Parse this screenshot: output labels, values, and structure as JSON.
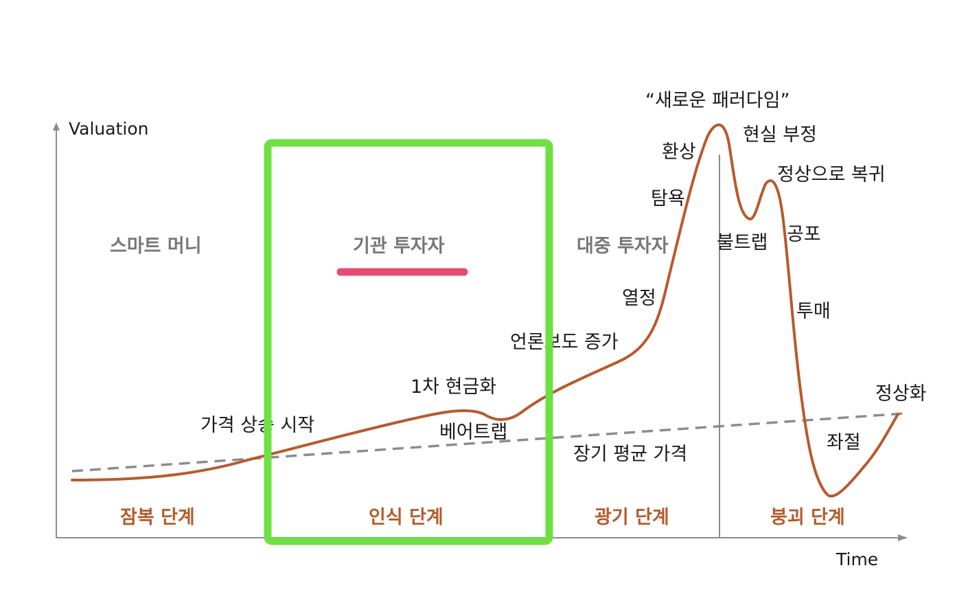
{
  "axes": {
    "y_label": "Valuation",
    "x_label": "Time"
  },
  "investor_groups": {
    "smart_money": "스마트 머니",
    "institutional": "기관 투자자",
    "public": "대중 투자자"
  },
  "stages": {
    "stealth": "잠복 단계",
    "awareness": "인식 단계",
    "mania": "광기 단계",
    "blowoff": "붕괴 단계"
  },
  "annotations": {
    "price_rise_start": "가격 상승 시작",
    "first_sell_off": "1차 현금화",
    "bear_trap": "베어트랩",
    "media_attention": "언론보도 증가",
    "enthusiasm": "열정",
    "greed": "탐욕",
    "delusion": "환상",
    "new_paradigm": "“새로운 패러다임”",
    "denial": "현실 부정",
    "bull_trap": "불트랩",
    "return_to_normal": "정상으로 복귀",
    "fear": "공포",
    "capitulation": "투매",
    "despair": "좌절",
    "normalization": "정상화",
    "long_term_mean": "장기 평균 가격"
  },
  "colors": {
    "curve": "#b85a2c",
    "stage_text": "#b55a2b",
    "group_text": "#777777",
    "mean_line": "#8c8c8c",
    "highlight_box": "#6fe043",
    "highlight_underline": "#e84a6f",
    "axis": "#8c8c8c"
  }
}
